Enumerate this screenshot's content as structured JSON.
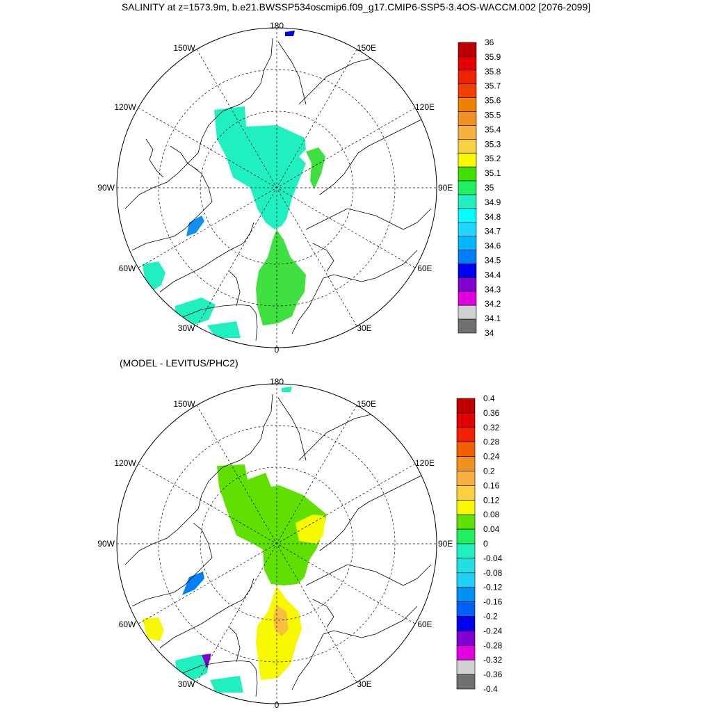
{
  "title": "SALINITY at z=1573.9m, b.e21.BWSSP534oscmip6.f09_g17.CMIP6-SSP5-3.4OS-WACCM.002 [2076-2099]",
  "diff_title": "(MODEL - LEVITUS/PHC2)",
  "longitude_labels": {
    "top": "180",
    "bottom": "0",
    "left": "90W",
    "right": "90E",
    "upper_left_1": "150W",
    "upper_left_2": "120W",
    "upper_right_1": "150E",
    "upper_right_2": "120E",
    "lower_left_1": "60W",
    "lower_left_2": "30W",
    "lower_right_1": "60E",
    "lower_right_2": "30E"
  },
  "colorbar_top": {
    "labels": [
      "36",
      "35.9",
      "35.8",
      "35.7",
      "35.6",
      "35.5",
      "35.4",
      "35.3",
      "35.2",
      "35.1",
      "35",
      "34.9",
      "34.8",
      "34.7",
      "34.6",
      "34.5",
      "34.4",
      "34.3",
      "34.2",
      "34.1",
      "34"
    ],
    "colors": [
      "#c00000",
      "#e00000",
      "#f02000",
      "#f04000",
      "#f08000",
      "#f09020",
      "#f8b040",
      "#f8d040",
      "#f8f800",
      "#40e000",
      "#20f060",
      "#20f0c0",
      "#00ffff",
      "#20d8ff",
      "#00b8ff",
      "#0080f8",
      "#0000f0",
      "#8000d0",
      "#e000e0",
      "#d0d0d0",
      "#707070"
    ]
  },
  "colorbar_bottom": {
    "labels": [
      "0.4",
      "0.36",
      "0.32",
      "0.28",
      "0.24",
      "0.2",
      "0.16",
      "0.12",
      "0.08",
      "0.04",
      "0",
      "-0.04",
      "-0.08",
      "-0.12",
      "-0.16",
      "-0.2",
      "-0.24",
      "-0.28",
      "-0.32",
      "-0.36",
      "-0.4"
    ],
    "colors": [
      "#c00000",
      "#e00000",
      "#f02000",
      "#f06000",
      "#f09020",
      "#f8b040",
      "#f8d040",
      "#f8f800",
      "#60e000",
      "#20f060",
      "#20f0c0",
      "#20e0e0",
      "#20d0f8",
      "#0090f8",
      "#0060f8",
      "#0000f0",
      "#8000d0",
      "#e000e0",
      "#d0d0d0",
      "#707070"
    ]
  },
  "fill_colors": {
    "top_basin": "#20f0c0",
    "top_atlantic": "#40e040",
    "top_blue": "#1090f0",
    "bottom_green": "#60e000",
    "bottom_yellow": "#f8f800",
    "bottom_orange": "#f8c040",
    "bottom_blue": "#0080f8",
    "bottom_cyan": "#20f0c0"
  }
}
